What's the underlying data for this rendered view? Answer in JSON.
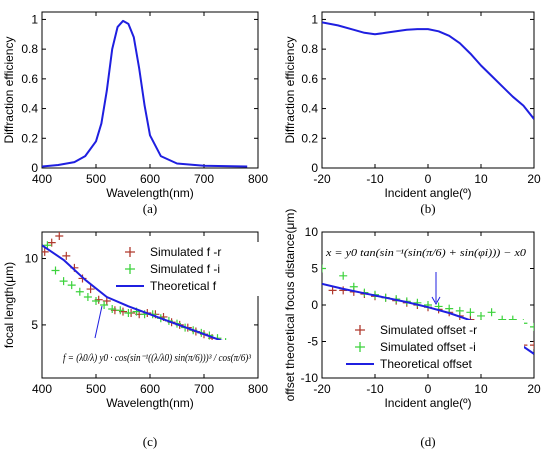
{
  "chart_data": [
    {
      "type": "line",
      "caption": "(a)",
      "xlabel": "Wavelength(nm)",
      "ylabel": "Diffraction efficiency",
      "xlim": [
        400,
        800
      ],
      "ylim": [
        0,
        1.05
      ],
      "xticks": [
        400,
        500,
        600,
        700,
        800
      ],
      "yticks": [
        0,
        0.2,
        0.4,
        0.6,
        0.8,
        1
      ],
      "ytick_labels": [
        "0",
        "0.2",
        "0.4",
        "0.6",
        "0.8",
        "1"
      ],
      "series": [
        {
          "color": "#1f1fe0",
          "x": [
            400,
            430,
            460,
            480,
            500,
            510,
            520,
            530,
            540,
            550,
            560,
            570,
            580,
            590,
            600,
            620,
            650,
            700,
            780
          ],
          "y": [
            0.01,
            0.02,
            0.04,
            0.08,
            0.18,
            0.3,
            0.52,
            0.8,
            0.95,
            0.99,
            0.97,
            0.88,
            0.67,
            0.42,
            0.22,
            0.08,
            0.03,
            0.015,
            0.01
          ]
        }
      ]
    },
    {
      "type": "line",
      "caption": "(b)",
      "xlabel": "Incident angle(º)",
      "ylabel": "Diffraction efficiency",
      "xlim": [
        -20,
        20
      ],
      "ylim": [
        0,
        1.05
      ],
      "xticks": [
        -20,
        -10,
        0,
        10,
        20
      ],
      "yticks": [
        0,
        0.2,
        0.4,
        0.6,
        0.8,
        1
      ],
      "ytick_labels": [
        "0",
        "0.2",
        "0.4",
        "0.6",
        "0.8",
        "1"
      ],
      "series": [
        {
          "color": "#1f1fe0",
          "x": [
            -20,
            -17,
            -14,
            -12,
            -10,
            -8,
            -6,
            -4,
            -2,
            0,
            2,
            4,
            6,
            8,
            10,
            12,
            14,
            16,
            18,
            20
          ],
          "y": [
            0.98,
            0.96,
            0.93,
            0.91,
            0.9,
            0.91,
            0.92,
            0.93,
            0.935,
            0.935,
            0.92,
            0.89,
            0.84,
            0.77,
            0.69,
            0.62,
            0.55,
            0.48,
            0.42,
            0.33
          ]
        }
      ]
    },
    {
      "type": "scatter",
      "caption": "(c)",
      "xlabel": "Wavelength(nm)",
      "ylabel": "focal length(μm)",
      "xlim": [
        400,
        800
      ],
      "ylim": [
        1,
        12
      ],
      "xticks": [
        400,
        500,
        600,
        700,
        800
      ],
      "yticks": [
        5,
        10
      ],
      "legend": "top-right",
      "equation": "f = (λ0/λ) y0 · cos(sin⁻¹((λ/λ0) sin(π/6)))³ / cos(π/6)³",
      "series": [
        {
          "name": "Simulated f -r",
          "color": "#b03a2e",
          "marker": "plus",
          "x": [
            405,
            418,
            432,
            445,
            460,
            475,
            490,
            505,
            520,
            535,
            550,
            565,
            580,
            595,
            610,
            625,
            640,
            655,
            670,
            685,
            700,
            715,
            730,
            745,
            760,
            775
          ],
          "y": [
            10.5,
            11.2,
            11.7,
            10.2,
            9.3,
            8.5,
            7.7,
            6.9,
            6.8,
            6.1,
            6.0,
            5.9,
            5.8,
            5.9,
            5.8,
            5.6,
            5.2,
            5.0,
            4.8,
            4.5,
            4.3,
            4.0,
            3.7,
            3.4,
            3.2,
            2.9
          ]
        },
        {
          "name": "Simulated f -i",
          "color": "#3cd23c",
          "marker": "plus",
          "x": [
            410,
            425,
            440,
            455,
            470,
            485,
            500,
            515,
            530,
            545,
            560,
            575,
            590,
            605,
            620,
            635,
            650,
            665,
            680,
            695,
            710,
            725,
            740,
            755,
            770
          ],
          "y": [
            11.0,
            9.1,
            8.3,
            8.0,
            7.5,
            7.1,
            6.8,
            6.5,
            6.2,
            6.1,
            5.9,
            6.0,
            5.8,
            5.8,
            5.5,
            5.3,
            5.1,
            4.8,
            4.6,
            4.4,
            4.2,
            4.0,
            3.7,
            3.5,
            3.0
          ]
        },
        {
          "name": "Theoretical f",
          "color": "#1f1fe0",
          "marker": "line",
          "x": [
            400,
            440,
            480,
            520,
            560,
            600,
            640,
            680,
            720,
            760,
            780
          ],
          "y": [
            11.0,
            9.9,
            8.4,
            7.1,
            6.4,
            5.8,
            5.2,
            4.6,
            4.0,
            3.4,
            3.0
          ]
        }
      ]
    },
    {
      "type": "scatter",
      "caption": "(d)",
      "xlabel": "Incident angle(º)",
      "ylabel": "offset theoretical focus distance(μm)",
      "xlim": [
        -20,
        20
      ],
      "ylim": [
        -10,
        10
      ],
      "xticks": [
        -20,
        -10,
        0,
        10,
        20
      ],
      "yticks": [
        -10,
        -5,
        0,
        5,
        10
      ],
      "legend": "bottom-right",
      "equation": "x = y0 tan(sin⁻¹(sin(π/6) + sin(φi))) − x0",
      "series": [
        {
          "name": "Simulated offset -r",
          "color": "#b03a2e",
          "marker": "plus",
          "x": [
            -18,
            -16,
            -14,
            -12,
            -10,
            -8,
            -6,
            -4,
            -2,
            0,
            2,
            4,
            6,
            8,
            10,
            12,
            14,
            16,
            18,
            20
          ],
          "y": [
            2.0,
            2.0,
            1.8,
            1.5,
            1.2,
            1.0,
            0.6,
            0.3,
            0.0,
            -0.3,
            -0.6,
            -1.0,
            -1.5,
            -2.0,
            -2.5,
            -3.0,
            -4.0,
            -5.0,
            -5.5,
            -5.5
          ]
        },
        {
          "name": "Simulated offset -i",
          "color": "#3cd23c",
          "marker": "plus",
          "x": [
            -20,
            -16,
            -14,
            -12,
            -10,
            -8,
            -6,
            -4,
            -2,
            0,
            2,
            4,
            6,
            8,
            10,
            12,
            14,
            16,
            18,
            20
          ],
          "y": [
            5.0,
            4.0,
            2.5,
            1.7,
            1.4,
            1.0,
            0.8,
            0.5,
            0.3,
            0.0,
            -0.2,
            -0.5,
            -0.8,
            -1.0,
            -1.5,
            -1.0,
            -2.0,
            -2.0,
            -2.5,
            -3.0
          ]
        },
        {
          "name": "Theoretical offset",
          "color": "#1f1fe0",
          "marker": "line",
          "x": [
            -20,
            -16,
            -12,
            -8,
            -4,
            0,
            4,
            8,
            12,
            16,
            20
          ],
          "y": [
            2.9,
            2.2,
            1.6,
            1.0,
            0.4,
            -0.3,
            -1.1,
            -2.1,
            -3.2,
            -4.7,
            -6.7
          ]
        }
      ]
    }
  ]
}
